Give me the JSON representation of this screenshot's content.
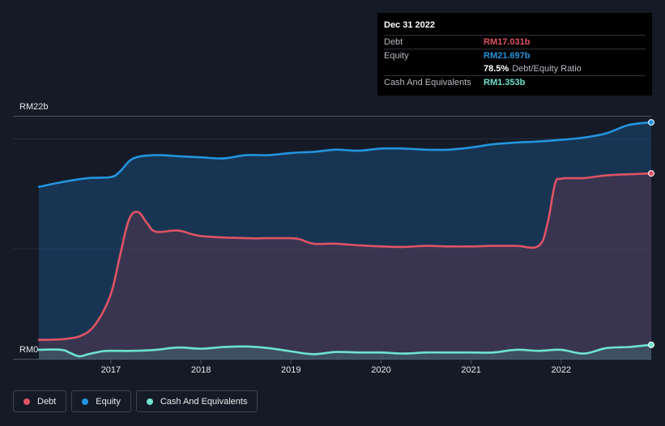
{
  "chart_data": {
    "type": "area",
    "title": "",
    "y_axis_top_label": "RM22b",
    "y_axis_bottom_label": "RM0",
    "ylim": [
      0,
      22
    ],
    "xlim": [
      2016.2,
      2023.0
    ],
    "x_ticks": [
      {
        "value": 2017,
        "label": "2017"
      },
      {
        "value": 2018,
        "label": "2018"
      },
      {
        "value": 2019,
        "label": "2019"
      },
      {
        "value": 2020,
        "label": "2020"
      },
      {
        "value": 2021,
        "label": "2021"
      },
      {
        "value": 2022,
        "label": "2022"
      }
    ],
    "series": [
      {
        "name": "Equity",
        "color": "#2394df",
        "points": [
          [
            2016.2,
            15.8
          ],
          [
            2016.5,
            16.3
          ],
          [
            2016.75,
            16.6
          ],
          [
            2017.0,
            16.7
          ],
          [
            2017.1,
            17.2
          ],
          [
            2017.25,
            18.4
          ],
          [
            2017.5,
            18.7
          ],
          [
            2017.75,
            18.6
          ],
          [
            2018.0,
            18.5
          ],
          [
            2018.25,
            18.4
          ],
          [
            2018.5,
            18.7
          ],
          [
            2018.75,
            18.7
          ],
          [
            2019.0,
            18.9
          ],
          [
            2019.25,
            19.0
          ],
          [
            2019.5,
            19.2
          ],
          [
            2019.75,
            19.1
          ],
          [
            2020.0,
            19.3
          ],
          [
            2020.25,
            19.3
          ],
          [
            2020.5,
            19.2
          ],
          [
            2020.75,
            19.2
          ],
          [
            2021.0,
            19.4
          ],
          [
            2021.25,
            19.7
          ],
          [
            2021.5,
            19.85
          ],
          [
            2021.75,
            19.95
          ],
          [
            2022.0,
            20.1
          ],
          [
            2022.25,
            20.3
          ],
          [
            2022.5,
            20.7
          ],
          [
            2022.75,
            21.45
          ],
          [
            2023.0,
            21.697
          ]
        ]
      },
      {
        "name": "Debt",
        "color": "#e05365",
        "points": [
          [
            2016.2,
            1.8
          ],
          [
            2016.5,
            1.9
          ],
          [
            2016.7,
            2.3
          ],
          [
            2016.85,
            3.5
          ],
          [
            2017.0,
            6.0
          ],
          [
            2017.1,
            9.5
          ],
          [
            2017.2,
            12.8
          ],
          [
            2017.3,
            13.5
          ],
          [
            2017.4,
            12.5
          ],
          [
            2017.5,
            11.7
          ],
          [
            2017.75,
            11.8
          ],
          [
            2018.0,
            11.3
          ],
          [
            2018.5,
            11.1
          ],
          [
            2018.75,
            11.1
          ],
          [
            2019.0,
            11.1
          ],
          [
            2019.1,
            11.0
          ],
          [
            2019.25,
            10.6
          ],
          [
            2019.5,
            10.6
          ],
          [
            2019.75,
            10.45
          ],
          [
            2020.0,
            10.35
          ],
          [
            2020.25,
            10.3
          ],
          [
            2020.5,
            10.4
          ],
          [
            2020.75,
            10.35
          ],
          [
            2021.0,
            10.35
          ],
          [
            2021.25,
            10.4
          ],
          [
            2021.5,
            10.4
          ],
          [
            2021.75,
            10.4
          ],
          [
            2021.85,
            12.5
          ],
          [
            2021.93,
            16.0
          ],
          [
            2022.0,
            16.55
          ],
          [
            2022.25,
            16.6
          ],
          [
            2022.5,
            16.85
          ],
          [
            2022.75,
            16.95
          ],
          [
            2023.0,
            17.031
          ]
        ]
      },
      {
        "name": "Cash And Equivalents",
        "color": "#6ee3cf",
        "points": [
          [
            2016.2,
            0.9
          ],
          [
            2016.45,
            0.9
          ],
          [
            2016.55,
            0.6
          ],
          [
            2016.65,
            0.3
          ],
          [
            2016.75,
            0.5
          ],
          [
            2016.9,
            0.75
          ],
          [
            2017.0,
            0.8
          ],
          [
            2017.25,
            0.8
          ],
          [
            2017.5,
            0.9
          ],
          [
            2017.75,
            1.1
          ],
          [
            2018.0,
            1.0
          ],
          [
            2018.25,
            1.15
          ],
          [
            2018.5,
            1.2
          ],
          [
            2018.75,
            1.05
          ],
          [
            2019.0,
            0.75
          ],
          [
            2019.25,
            0.5
          ],
          [
            2019.5,
            0.7
          ],
          [
            2019.75,
            0.65
          ],
          [
            2020.0,
            0.65
          ],
          [
            2020.25,
            0.55
          ],
          [
            2020.5,
            0.65
          ],
          [
            2020.75,
            0.65
          ],
          [
            2021.0,
            0.65
          ],
          [
            2021.25,
            0.65
          ],
          [
            2021.5,
            0.9
          ],
          [
            2021.75,
            0.8
          ],
          [
            2022.0,
            0.9
          ],
          [
            2022.25,
            0.55
          ],
          [
            2022.5,
            1.05
          ],
          [
            2022.75,
            1.15
          ],
          [
            2023.0,
            1.353
          ]
        ]
      }
    ],
    "tooltip": {
      "date": "Dec 31 2022",
      "rows": [
        {
          "label": "Debt",
          "value": "RM17.031b",
          "color": "#e05365"
        },
        {
          "label": "Equity",
          "value": "RM21.697b",
          "color": "#2394df"
        },
        {
          "label": "",
          "value": "78.5%",
          "suffix": "Debt/Equity Ratio",
          "color": "#ffffff"
        },
        {
          "label": "Cash And Equivalents",
          "value": "RM1.353b",
          "color": "#6ee3cf"
        }
      ]
    },
    "legend": [
      {
        "label": "Debt",
        "color": "#e05365"
      },
      {
        "label": "Equity",
        "color": "#2394df"
      },
      {
        "label": "Cash And Equivalents",
        "color": "#6ee3cf"
      }
    ]
  }
}
